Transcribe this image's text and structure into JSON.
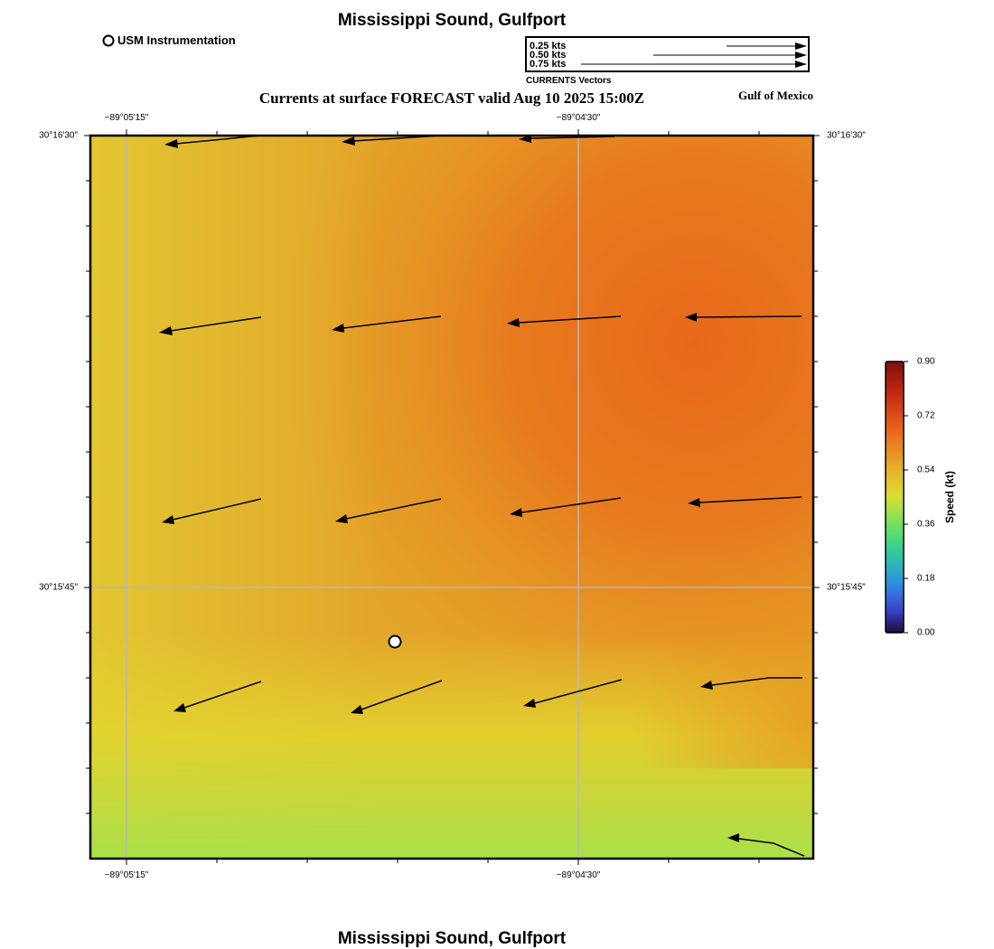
{
  "title_top": "Mississippi Sound, Gulfport",
  "title_bottom": "Mississippi Sound, Gulfport",
  "subtitle": "Currents at surface FORECAST valid Aug 10 2025 15:00Z",
  "region_label": "Gulf of Mexico",
  "marker_legend": {
    "label": "USM Instrumentation",
    "icon": "circle-marker-icon"
  },
  "vector_legend": {
    "entries": [
      {
        "label": "0.25 kts",
        "speed": 0.25
      },
      {
        "label": "0.50 kts",
        "speed": 0.5
      },
      {
        "label": "0.75 kts",
        "speed": 0.75
      }
    ],
    "caption": "CURRENTS Vectors"
  },
  "axes": {
    "x_top": [
      "−89°05'15\"",
      "−89°04'30\""
    ],
    "x_bottom": [
      "−89°05'15\"",
      "−89°04'30\""
    ],
    "y_left": [
      "30°16'30\"",
      "30°15'45\""
    ],
    "y_right": [
      "30°16'30\"",
      "30°15'45\""
    ]
  },
  "colorbar": {
    "label": "Speed (kt)",
    "ticks": [
      "0.90",
      "0.72",
      "0.54",
      "0.36",
      "0.18",
      "0.00"
    ],
    "min": 0.0,
    "max": 0.9
  },
  "colors": {
    "speed_high": "#e8681a",
    "speed_mid": "#e3a52a",
    "speed_low": "#e2d52f",
    "speed_lowest": "#a9e04a"
  }
}
